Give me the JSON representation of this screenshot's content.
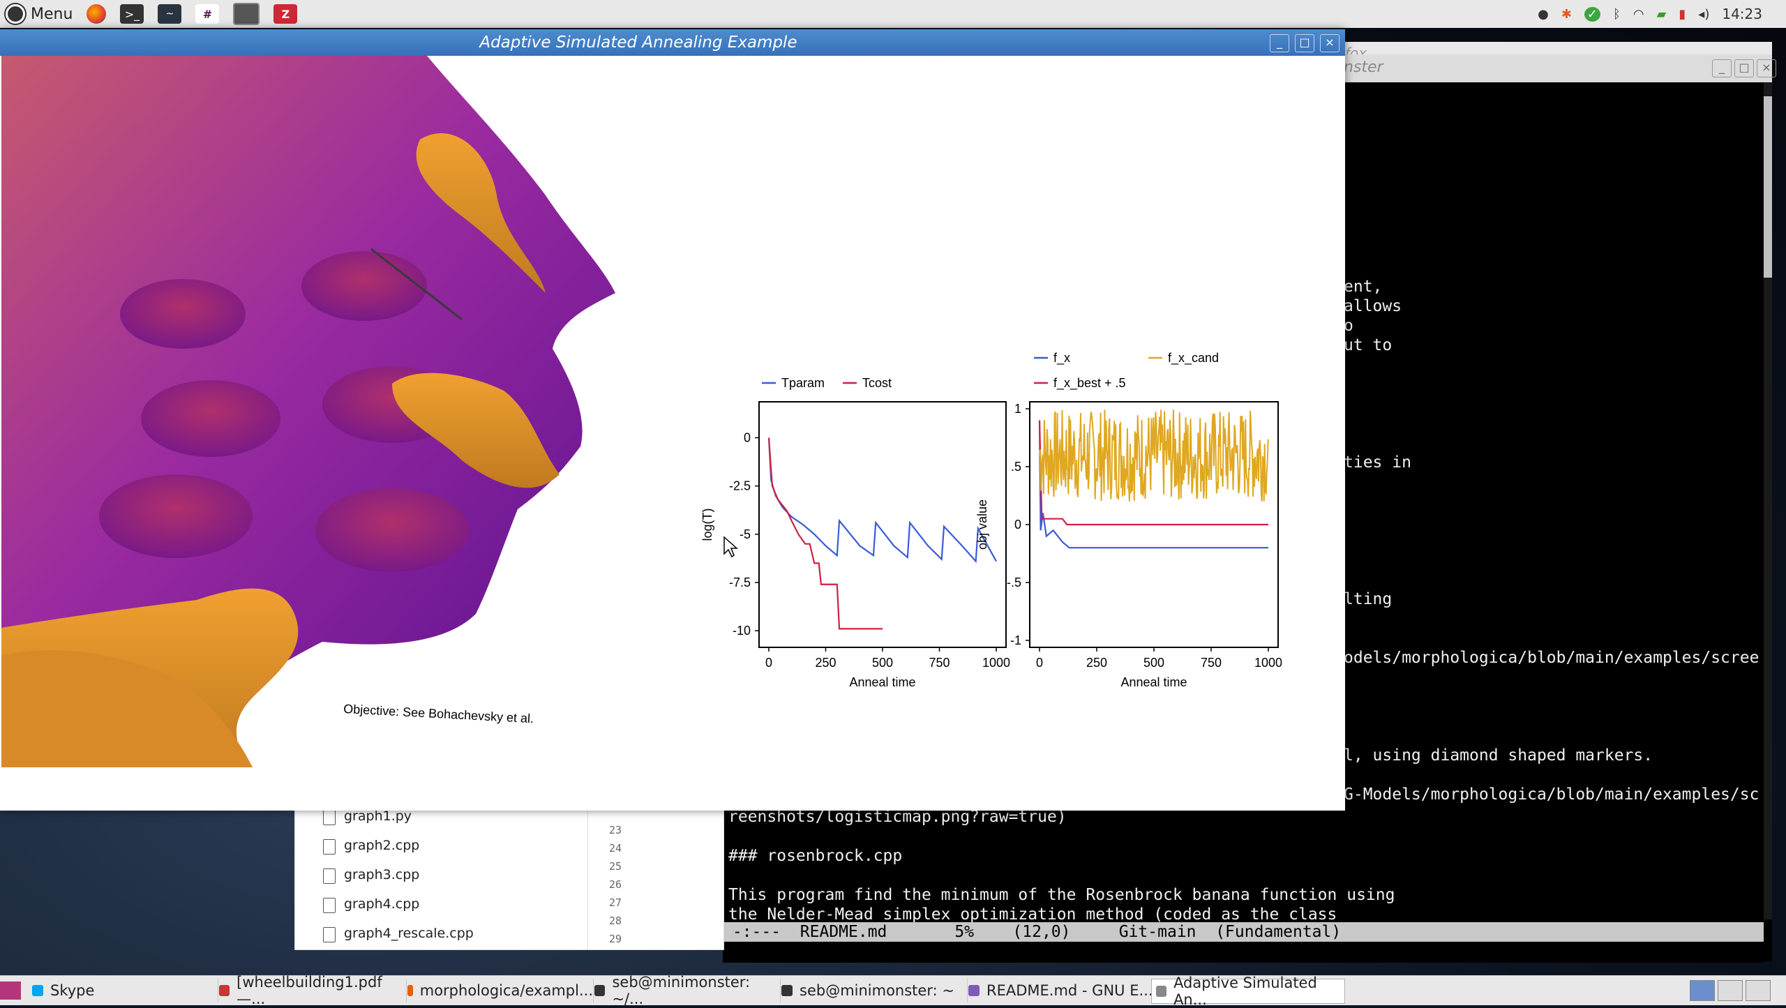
{
  "top_panel": {
    "menu_label": "Menu",
    "clock": "14:23",
    "launchers": [
      "firefox-icon",
      "terminal-icon",
      "system-monitor-icon",
      "slack-icon",
      "files-icon",
      "zotero-icon"
    ]
  },
  "main_window": {
    "title": "Adaptive Simulated Annealing Example",
    "objective_label": "Objective: See Bohachevsky et al."
  },
  "chart_data": [
    {
      "type": "line",
      "xlabel": "Anneal time",
      "ylabel": "log(T)",
      "xticks": [
        "0",
        "250",
        "500",
        "750",
        "1000"
      ],
      "yticks": [
        "0",
        "-2.5",
        "-5",
        "-7.5",
        "-10"
      ],
      "xlim": [
        0,
        1000
      ],
      "ylim": [
        -10.5,
        1.5
      ],
      "legend": "top",
      "series": [
        {
          "name": "Tparam",
          "color": "#3a5bd8",
          "x": [
            0,
            10,
            30,
            60,
            100,
            150,
            200,
            250,
            300,
            310,
            400,
            460,
            470,
            550,
            610,
            620,
            700,
            760,
            770,
            850,
            910,
            920,
            1000
          ],
          "y": [
            0,
            -2.2,
            -3.0,
            -3.6,
            -4.1,
            -4.5,
            -5.0,
            -5.6,
            -6.1,
            -4.3,
            -5.6,
            -6.1,
            -4.4,
            -5.6,
            -6.2,
            -4.4,
            -5.6,
            -6.3,
            -4.6,
            -5.6,
            -6.4,
            -4.7,
            -6.4
          ]
        },
        {
          "name": "Tcost",
          "color": "#d02040",
          "x": [
            0,
            15,
            40,
            80,
            100,
            130,
            160,
            180,
            200,
            220,
            230,
            250,
            260,
            300,
            310,
            500
          ],
          "y": [
            0,
            -2.5,
            -3.2,
            -3.8,
            -4.3,
            -5.0,
            -5.5,
            -5.5,
            -6.5,
            -6.5,
            -7.6,
            -7.6,
            -7.6,
            -7.6,
            -9.9,
            -9.9
          ]
        }
      ]
    },
    {
      "type": "line",
      "xlabel": "Anneal time",
      "ylabel": "obj value",
      "xticks": [
        "0",
        "250",
        "500",
        "750",
        "1000"
      ],
      "yticks": [
        "1",
        ".5",
        "0",
        "-.5",
        "-1"
      ],
      "xlim": [
        0,
        1000
      ],
      "ylim": [
        -1,
        1
      ],
      "legend": "top",
      "series": [
        {
          "name": "f_x",
          "color": "#3a5bd8",
          "x": [
            0,
            5,
            15,
            30,
            60,
            100,
            130,
            200,
            1000
          ],
          "y": [
            0.9,
            -0.05,
            0.1,
            -0.1,
            -0.05,
            -0.15,
            -0.2,
            -0.2,
            -0.2
          ]
        },
        {
          "name": "f_x_best + .5",
          "color": "#d02040",
          "x": [
            0,
            10,
            30,
            60,
            100,
            120,
            1000
          ],
          "y": [
            0.9,
            0.05,
            0.05,
            0.05,
            0.05,
            0.0,
            0.0
          ]
        },
        {
          "name": "f_x_cand",
          "color": "#e0a820",
          "x_range": [
            0,
            1000
          ],
          "y_range": [
            0.2,
            1.0
          ]
        }
      ]
    }
  ],
  "terminal": {
    "lines": [
      "ent,",
      "allows",
      "o",
      "ut to",
      "ties in",
      "lting",
      "odels/morphologica/blob/main/examples/scree",
      "l, using diamond shaped markers.",
      "G-Models/morphologica/blob/main/examples/sc",
      "reenshots/logisticmap.png?raw=true)",
      "### rosenbrock.cpp",
      "This program find the minimum of the Rosenbrock banana function using",
      "the Nelder-Mead simplex optimization method (coded as the class"
    ],
    "modeline": " -:---  README.md       5%    (12,0)     Git-main  (Fundamental)"
  },
  "behind_windows": {
    "firefox_title_fragment": "fox",
    "second_title_fragment": "nster"
  },
  "file_list": [
    "graph1.py",
    "graph2.cpp",
    "graph3.cpp",
    "graph4.cpp",
    "graph4_rescale.cpp"
  ],
  "line_numbers": [
    "23",
    "24",
    "25",
    "26",
    "27",
    "28",
    "29"
  ],
  "taskbar": [
    {
      "label": "Skype",
      "color": "#00a4ef"
    },
    {
      "label": "[wheelbuilding1.pdf —...",
      "color": "#cc3333"
    },
    {
      "label": "morphologica/exampl...",
      "color": "#e66000"
    },
    {
      "label": "seb@minimonster: ~/...",
      "color": "#333333"
    },
    {
      "label": "seb@minimonster: ~",
      "color": "#333333"
    },
    {
      "label": "README.md - GNU E...",
      "color": "#7f5ab6"
    },
    {
      "label": "Adaptive Simulated An...",
      "color": "#888888"
    }
  ]
}
